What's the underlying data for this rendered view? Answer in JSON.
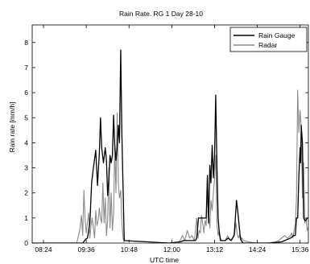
{
  "chart_data": {
    "type": "line",
    "title": "Rain Rate. RG 1 Day 28-10",
    "xlabel": "UTC time",
    "ylabel": "Rain rate [mm/h]",
    "xlim": [
      "08:05",
      "15:50"
    ],
    "ylim": [
      0,
      8.7
    ],
    "x_ticks": [
      "08:24",
      "09:36",
      "10:48",
      "12:00",
      "13:12",
      "14:24",
      "15:36"
    ],
    "y_ticks": [
      0,
      1,
      2,
      3,
      4,
      5,
      6,
      7,
      8
    ],
    "grid": false,
    "legend_position": "top-right",
    "series": [
      {
        "name": "Rain Gauge",
        "color": "#000000",
        "x": [
          "08:05",
          "09:30",
          "09:35",
          "09:38",
          "09:42",
          "09:45",
          "09:48",
          "09:52",
          "09:55",
          "09:58",
          "10:00",
          "10:02",
          "10:05",
          "10:08",
          "10:10",
          "10:12",
          "10:14",
          "10:16",
          "10:18",
          "10:20",
          "10:22",
          "10:24",
          "10:26",
          "10:28",
          "10:30",
          "10:32",
          "10:34",
          "10:36",
          "10:40",
          "11:55",
          "12:15",
          "12:20",
          "12:40",
          "12:42",
          "12:45",
          "12:48",
          "12:50",
          "12:52",
          "12:55",
          "12:58",
          "13:00",
          "13:02",
          "13:04",
          "13:06",
          "13:08",
          "13:10",
          "13:12",
          "13:14",
          "13:16",
          "13:18",
          "13:20",
          "13:22",
          "13:30",
          "13:35",
          "13:40",
          "13:45",
          "13:47",
          "13:49",
          "13:51",
          "13:53",
          "13:55",
          "13:57",
          "14:00",
          "14:45",
          "15:05",
          "15:10",
          "15:15",
          "15:20",
          "15:25",
          "15:28",
          "15:30",
          "15:32",
          "15:34",
          "15:36",
          "15:37",
          "15:38",
          "15:40",
          "15:42",
          "15:44",
          "15:46",
          "15:48",
          "15:50"
        ],
        "y": [
          0,
          0,
          0.15,
          0.2,
          0.8,
          2.4,
          3.0,
          3.7,
          2.3,
          3.6,
          5.0,
          3.8,
          3.2,
          3.8,
          3.3,
          1.9,
          2.5,
          3.5,
          3.2,
          3.5,
          5.1,
          3.9,
          3.3,
          3.8,
          4.7,
          4.0,
          7.7,
          4.3,
          0.1,
          0,
          0.05,
          0.1,
          0.1,
          0.2,
          1.0,
          1.0,
          1.0,
          1.0,
          1.0,
          1.0,
          2.7,
          0.8,
          3.1,
          2.4,
          3.9,
          2.6,
          3.5,
          5.9,
          3.1,
          1.0,
          0.4,
          0.1,
          0.1,
          0.2,
          0.1,
          0.3,
          1.0,
          1.7,
          1.3,
          0.8,
          0.3,
          0.1,
          0,
          0,
          0.05,
          0.1,
          0.15,
          0.2,
          0.3,
          0.3,
          1.0,
          1.0,
          2.7,
          3.8,
          3.2,
          4.7,
          4.0,
          1.0,
          0.9,
          0.9,
          1.0,
          1.0
        ]
      },
      {
        "name": "Radar",
        "color": "#8a8a8a",
        "x": [
          "08:05",
          "09:20",
          "09:25",
          "09:28",
          "09:30",
          "09:32",
          "09:34",
          "09:36",
          "09:38",
          "09:40",
          "09:42",
          "09:44",
          "09:46",
          "09:48",
          "09:50",
          "09:52",
          "09:54",
          "09:56",
          "09:58",
          "10:00",
          "10:02",
          "10:04",
          "10:06",
          "10:08",
          "10:10",
          "10:12",
          "10:14",
          "10:16",
          "10:18",
          "10:20",
          "10:22",
          "10:24",
          "10:26",
          "10:28",
          "10:30",
          "10:32",
          "10:34",
          "10:36",
          "10:38",
          "10:40",
          "12:10",
          "12:14",
          "12:18",
          "12:22",
          "12:26",
          "12:30",
          "12:34",
          "12:38",
          "12:42",
          "12:44",
          "12:46",
          "12:48",
          "12:50",
          "12:52",
          "12:54",
          "12:56",
          "12:58",
          "13:00",
          "13:02",
          "13:04",
          "13:06",
          "13:08",
          "13:10",
          "13:12",
          "13:14",
          "13:16",
          "13:18",
          "13:20",
          "13:22",
          "13:24",
          "13:30",
          "13:34",
          "13:38",
          "13:42",
          "13:46",
          "13:48",
          "13:50",
          "13:52",
          "13:54",
          "13:56",
          "13:58",
          "14:00",
          "14:20",
          "14:40",
          "14:55",
          "15:00",
          "15:05",
          "15:10",
          "15:15",
          "15:20",
          "15:22",
          "15:24",
          "15:26",
          "15:28",
          "15:30",
          "15:32",
          "15:34",
          "15:36",
          "15:38",
          "15:40",
          "15:42",
          "15:44",
          "15:46",
          "15:48",
          "15:50"
        ],
        "y": [
          0,
          0,
          0.5,
          1.1,
          0.3,
          2.1,
          1.0,
          0.4,
          0.8,
          1.2,
          0.2,
          0.7,
          1.0,
          0.6,
          0.2,
          1.3,
          0.7,
          0.9,
          1.4,
          1.0,
          0.8,
          2.4,
          0.8,
          1.8,
          0.3,
          0.9,
          3.0,
          0.6,
          2.0,
          0.5,
          1.2,
          3.9,
          2.0,
          5.2,
          2.4,
          1.8,
          2.1,
          0.8,
          0.2,
          0,
          0,
          0.1,
          0.3,
          0.1,
          0.5,
          0.2,
          0.3,
          0.1,
          1.0,
          0.2,
          0.5,
          0.4,
          1.1,
          0.8,
          0.4,
          0.9,
          0.7,
          1.9,
          1.2,
          0.6,
          1.7,
          1.3,
          2.0,
          2.6,
          3.5,
          0.8,
          0.3,
          0.5,
          0.2,
          0.1,
          0.1,
          0.3,
          0.1,
          0.2,
          0.4,
          0.8,
          0.4,
          0.2,
          0.3,
          0.1,
          0.2,
          0.1,
          0,
          0,
          0.05,
          0.1,
          0.2,
          0.3,
          0.2,
          0.3,
          0.4,
          0.2,
          0.5,
          0.8,
          1.8,
          6.1,
          4.4,
          5.3,
          4.6,
          1.8,
          3.2,
          0.8,
          1.0,
          0.5,
          0.7
        ]
      }
    ]
  }
}
